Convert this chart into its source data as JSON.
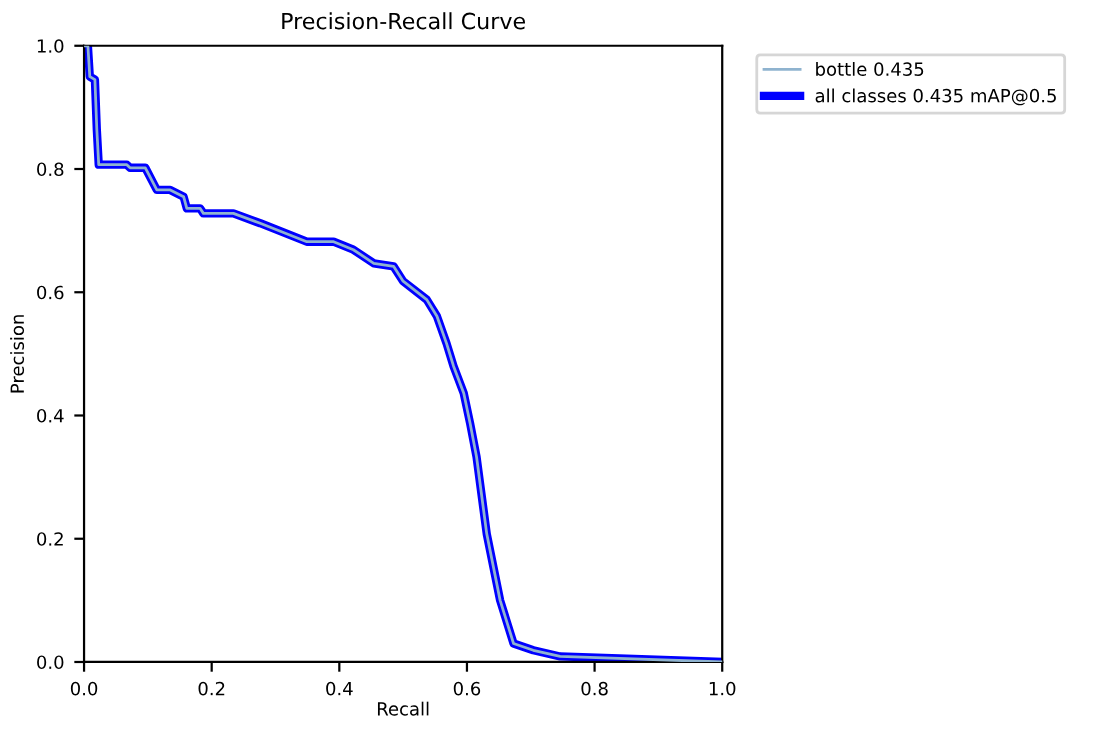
{
  "chart_data": {
    "type": "line",
    "title": "Precision-Recall Curve",
    "xlabel": "Recall",
    "ylabel": "Precision",
    "x": [
      0,
      0.006,
      0.009,
      0.017,
      0.02,
      0.023,
      0.067,
      0.072,
      0.096,
      0.114,
      0.135,
      0.156,
      0.161,
      0.182,
      0.187,
      0.234,
      0.276,
      0.349,
      0.391,
      0.422,
      0.454,
      0.485,
      0.5,
      0.537,
      0.553,
      0.568,
      0.579,
      0.595,
      0.605,
      0.615,
      0.631,
      0.652,
      0.673,
      0.704,
      0.746,
      1.0
    ],
    "series": [
      {
        "name": "bottle 0.435",
        "color": "#8fb3cf",
        "values": [
          1.0,
          1.0,
          0.95,
          0.945,
          0.864,
          0.807,
          0.807,
          0.802,
          0.802,
          0.766,
          0.766,
          0.755,
          0.736,
          0.736,
          0.728,
          0.728,
          0.712,
          0.682,
          0.682,
          0.669,
          0.647,
          0.642,
          0.618,
          0.588,
          0.561,
          0.517,
          0.48,
          0.436,
          0.387,
          0.333,
          0.208,
          0.1,
          0.03,
          0.019,
          0.009,
          0
        ]
      },
      {
        "name": "all classes 0.435 mAP@0.5",
        "color": "#0000ff",
        "values": [
          1.0,
          1.0,
          0.95,
          0.945,
          0.864,
          0.807,
          0.807,
          0.802,
          0.802,
          0.766,
          0.766,
          0.755,
          0.736,
          0.736,
          0.728,
          0.728,
          0.712,
          0.682,
          0.682,
          0.669,
          0.647,
          0.642,
          0.618,
          0.588,
          0.561,
          0.517,
          0.48,
          0.436,
          0.387,
          0.333,
          0.208,
          0.1,
          0.03,
          0.019,
          0.009,
          0
        ]
      }
    ],
    "xlim": [
      0,
      1
    ],
    "ylim": [
      0,
      1
    ],
    "xticks": [
      {
        "value": 0,
        "label": "0.0"
      },
      0.2,
      0.4,
      0.6,
      0.8,
      {
        "value": 1,
        "label": "1.0"
      }
    ],
    "yticks": [
      {
        "value": 0,
        "label": "0.0"
      },
      0.2,
      0.4,
      0.6,
      0.8,
      {
        "value": 1,
        "label": "1.0"
      }
    ],
    "grid": false,
    "legend": "top right",
    "marker": "none",
    "line_style": "solid"
  }
}
